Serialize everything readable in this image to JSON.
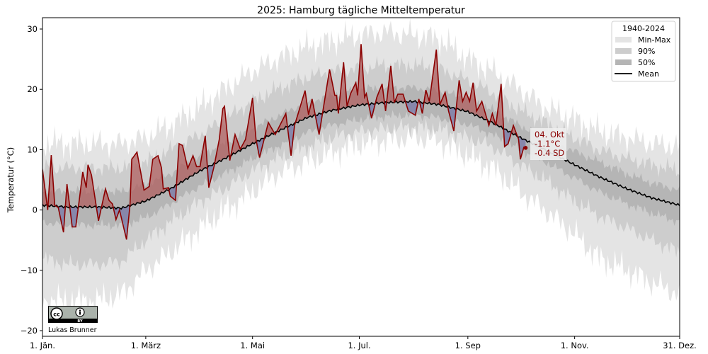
{
  "chart_data": {
    "type": "line",
    "title": "2025: Hamburg tägliche Mitteltemperatur",
    "xlabel": "",
    "ylabel": "Temperatur (°C)",
    "ylim": [
      -20,
      30
    ],
    "yticks": [
      -20,
      -10,
      0,
      10,
      20,
      30
    ],
    "xlim": [
      "2025-01-01",
      "2025-12-31"
    ],
    "xticks": [
      {
        "date": "2025-01-01",
        "label": "1. Jän."
      },
      {
        "date": "2025-03-01",
        "label": "1. März"
      },
      {
        "date": "2025-05-01",
        "label": "1. Mai"
      },
      {
        "date": "2025-07-01",
        "label": "1. Jul."
      },
      {
        "date": "2025-09-01",
        "label": "1. Sep"
      },
      {
        "date": "2025-11-01",
        "label": "1. Nov."
      },
      {
        "date": "2025-12-31",
        "label": "31. Dez."
      }
    ],
    "grid": false,
    "legend": {
      "title": "1940-2024",
      "placement": "top-right",
      "entries": [
        "Min-Max",
        "90%",
        "50%",
        "Mean"
      ]
    },
    "climatology": {
      "dates": [
        "01-01",
        "01-15",
        "02-01",
        "02-15",
        "03-01",
        "03-15",
        "04-01",
        "04-15",
        "05-01",
        "05-15",
        "06-01",
        "06-15",
        "07-01",
        "07-15",
        "08-01",
        "08-15",
        "09-01",
        "09-15",
        "10-01",
        "10-15",
        "11-01",
        "11-15",
        "12-01",
        "12-15",
        "12-31"
      ],
      "mean": [
        0.8,
        0.5,
        0.5,
        0.3,
        1.5,
        3.5,
        6.5,
        8.5,
        11,
        13,
        15.3,
        16.5,
        17.4,
        17.8,
        18,
        17.5,
        16.3,
        14.5,
        12,
        10,
        7.5,
        5.5,
        3.5,
        2,
        0.8
      ],
      "p25": [
        -2,
        -2.5,
        -2.5,
        -2.5,
        -1.3,
        1,
        4,
        6,
        8.5,
        10.5,
        12.8,
        14,
        15,
        15.5,
        15.8,
        15.3,
        14.2,
        12.5,
        10,
        8,
        5.3,
        3,
        1,
        -0.5,
        -2
      ],
      "p75": [
        3.3,
        3,
        3.3,
        3,
        4.3,
        6,
        9,
        11,
        13.5,
        15.5,
        17.8,
        19,
        20,
        20.3,
        20.3,
        19.8,
        18.5,
        16.6,
        14,
        12,
        9.7,
        8,
        6,
        4.5,
        3.3
      ],
      "p5": [
        -8,
        -9,
        -9,
        -8.5,
        -5,
        -2,
        1.5,
        3.5,
        6.5,
        8.5,
        10.5,
        12,
        13,
        13.5,
        13.8,
        13.5,
        12,
        10.5,
        7.5,
        5,
        1.5,
        -1,
        -3,
        -5,
        -7
      ],
      "p95": [
        7,
        7,
        7,
        7,
        8,
        10,
        12.5,
        15,
        18,
        20,
        22,
        23,
        23.5,
        24,
        24,
        23.5,
        21.5,
        19.5,
        16.5,
        14.5,
        12,
        10,
        8.5,
        7.5,
        6.5
      ],
      "min": [
        -15,
        -15,
        -15,
        -14,
        -10,
        -7,
        -3,
        0,
        3,
        6,
        8,
        9.5,
        11,
        11.5,
        12,
        11.5,
        9,
        7,
        3,
        0,
        -4,
        -8,
        -10,
        -12,
        -14
      ],
      "max": [
        11,
        11,
        11,
        11,
        12,
        14,
        17,
        20,
        23,
        25,
        27,
        28,
        29,
        29.5,
        29,
        28.5,
        25,
        23,
        20,
        17,
        15,
        13,
        12,
        11,
        10.5
      ]
    },
    "series_2025": {
      "points": [
        [
          "01-01",
          6.7
        ],
        [
          "01-04",
          0
        ],
        [
          "01-06",
          9.1
        ],
        [
          "01-08",
          0.8
        ],
        [
          "01-10",
          0.4
        ],
        [
          "01-13",
          -3.7
        ],
        [
          "01-15",
          4.3
        ],
        [
          "01-18",
          -2.8
        ],
        [
          "01-20",
          -2.8
        ],
        [
          "01-22",
          1.6
        ],
        [
          "01-24",
          6.3
        ],
        [
          "01-26",
          3.7
        ],
        [
          "01-27",
          7.5
        ],
        [
          "01-29",
          5.8
        ],
        [
          "02-02",
          -1.8
        ],
        [
          "02-06",
          3.5
        ],
        [
          "02-08",
          1.6
        ],
        [
          "02-10",
          1.0
        ],
        [
          "02-12",
          -1.6
        ],
        [
          "02-14",
          0
        ],
        [
          "02-18",
          -4.9
        ],
        [
          "02-20",
          0.8
        ],
        [
          "02-21",
          8.4
        ],
        [
          "02-24",
          9.6
        ],
        [
          "02-28",
          3.3
        ],
        [
          "03-03",
          3.9
        ],
        [
          "03-05",
          8.4
        ],
        [
          "03-08",
          9.0
        ],
        [
          "03-10",
          7.0
        ],
        [
          "03-11",
          3.5
        ],
        [
          "03-14",
          3.7
        ],
        [
          "03-15",
          2.3
        ],
        [
          "03-18",
          1.6
        ],
        [
          "03-20",
          11.0
        ],
        [
          "03-22",
          10.7
        ],
        [
          "03-25",
          6.9
        ],
        [
          "03-28",
          9.0
        ],
        [
          "03-30",
          7.2
        ],
        [
          "04-01",
          7.2
        ],
        [
          "04-04",
          12.3
        ],
        [
          "04-06",
          3.7
        ],
        [
          "04-09",
          7.2
        ],
        [
          "04-12",
          11.7
        ],
        [
          "04-14",
          16.8
        ],
        [
          "04-15",
          17.2
        ],
        [
          "04-18",
          8.2
        ],
        [
          "04-21",
          12.5
        ],
        [
          "04-24",
          10.1
        ],
        [
          "04-27",
          11.7
        ],
        [
          "05-01",
          18.6
        ],
        [
          "05-03",
          11.7
        ],
        [
          "05-05",
          8.7
        ],
        [
          "05-10",
          14.5
        ],
        [
          "05-14",
          12.5
        ],
        [
          "05-20",
          16.0
        ],
        [
          "05-23",
          9.0
        ],
        [
          "05-25",
          14.0
        ],
        [
          "05-31",
          19.8
        ],
        [
          "06-02",
          15.8
        ],
        [
          "06-04",
          18.4
        ],
        [
          "06-08",
          12.5
        ],
        [
          "06-14",
          23.3
        ],
        [
          "06-17",
          19.0
        ],
        [
          "06-18",
          19.0
        ],
        [
          "06-19",
          16.0
        ],
        [
          "06-22",
          24.5
        ],
        [
          "06-24",
          17.2
        ],
        [
          "06-26",
          19.3
        ],
        [
          "06-29",
          21.1
        ],
        [
          "06-30",
          19.0
        ],
        [
          "07-02",
          27.5
        ],
        [
          "07-04",
          18.7
        ],
        [
          "07-05",
          19.3
        ],
        [
          "07-08",
          15.2
        ],
        [
          "07-11",
          18.7
        ],
        [
          "07-14",
          20.9
        ],
        [
          "07-16",
          16.4
        ],
        [
          "07-19",
          23.9
        ],
        [
          "07-21",
          17.8
        ],
        [
          "07-23",
          19.2
        ],
        [
          "07-26",
          19.2
        ],
        [
          "07-29",
          16.4
        ],
        [
          "08-02",
          15.7
        ],
        [
          "08-04",
          18.4
        ],
        [
          "08-06",
          16.0
        ],
        [
          "08-08",
          19.9
        ],
        [
          "08-10",
          18.0
        ],
        [
          "08-14",
          26.6
        ],
        [
          "08-16",
          17.5
        ],
        [
          "08-19",
          19.5
        ],
        [
          "08-21",
          16.4
        ],
        [
          "08-24",
          13.1
        ],
        [
          "08-27",
          21.5
        ],
        [
          "08-29",
          18.0
        ],
        [
          "08-31",
          19.5
        ],
        [
          "09-02",
          18.0
        ],
        [
          "09-04",
          21.1
        ],
        [
          "09-06",
          16.4
        ],
        [
          "09-09",
          18.0
        ],
        [
          "09-13",
          14.0
        ],
        [
          "09-15",
          16.0
        ],
        [
          "09-17",
          14.0
        ],
        [
          "09-20",
          20.9
        ],
        [
          "09-22",
          10.5
        ],
        [
          "09-24",
          11.0
        ],
        [
          "09-27",
          14.0
        ],
        [
          "09-30",
          11.7
        ],
        [
          "10-01",
          8.4
        ],
        [
          "10-03",
          10.4
        ],
        [
          "10-04",
          10.3
        ]
      ]
    },
    "annotation": {
      "date": "04. Okt",
      "anomaly": "-1.1°C",
      "sd": "-0.4 SD"
    },
    "colors": {
      "line_2025": "#8b0000",
      "above_fill": "#b06060",
      "below_fill": "#7878a8",
      "mean": "#000000",
      "minmax": "#e4e4e4",
      "p90": "#cdcdcd",
      "p50": "#b5b5b5"
    }
  },
  "credit": {
    "license_logo": "cc-by",
    "author": "Lukas Brunner"
  }
}
